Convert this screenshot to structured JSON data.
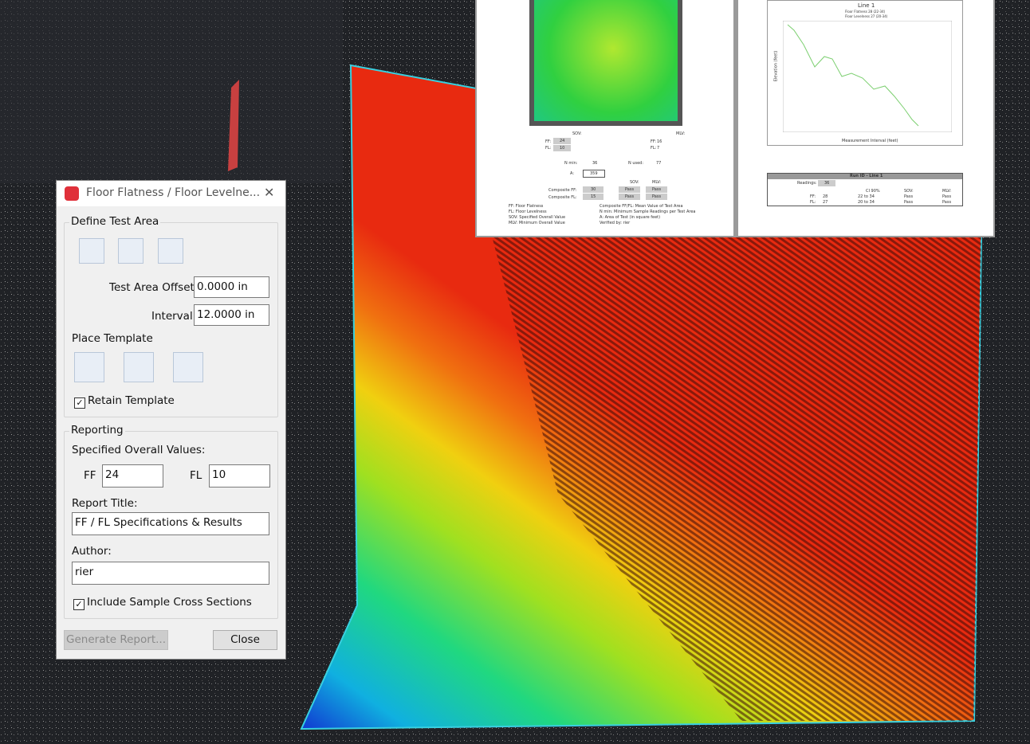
{
  "dialog": {
    "title": "Floor Flatness / Floor Levelne...",
    "close_icon": "✕",
    "define_test_area": "Define Test Area",
    "test_area_offset": {
      "label": "Test Area Offset",
      "value": "0.0000 in"
    },
    "interval": {
      "label": "Interval",
      "value": "12.0000 in"
    },
    "place_template": "Place Template",
    "retain_template": "Retain Template",
    "reporting": "Reporting",
    "specified_overall_values": "Specified Overall Values:",
    "ff": {
      "label": "FF",
      "value": "24"
    },
    "fl": {
      "label": "FL",
      "value": "10"
    },
    "report_title": {
      "label": "Report Title:",
      "value": "FF / FL Specifications & Results"
    },
    "author": {
      "label": "Author:",
      "value": "rier"
    },
    "include_cross_sections": "Include Sample Cross Sections",
    "buttons": {
      "generate": "Generate Report...",
      "close": "Close"
    }
  },
  "report": {
    "left": {
      "sov": "SOV:",
      "mlv": "MLV:",
      "ff_label": "FF:",
      "fl_label": "FL:",
      "sov_ff": "24",
      "sov_fl": "10",
      "mlv_ff": "16",
      "mlv_fl": "7",
      "n_min_label": "N min:",
      "n_min": "36",
      "n_used_label": "N used:",
      "n_used": "77",
      "a_label": "A:",
      "a": "359",
      "composite_ff_label": "Composite FF:",
      "composite_ff": "30",
      "composite_fl_label": "Composite FL:",
      "composite_fl": "15",
      "pass": "Pass",
      "legend": [
        "FF: Floor Flatness",
        "FL: Floor Levelness",
        "SOV: Specified Overall Value",
        "MLV: Minimum Overall Value"
      ],
      "legend2": [
        "Composite FF/FL: Mean Value of Test Area",
        "N min: Minimum Sample Readings per Test Area",
        "A: Area of Test (in square feet)",
        "Verified by: rier"
      ]
    },
    "right": {
      "title": "Line 1",
      "sub1": "Floor Flatness 28 (22-34)",
      "sub2": "Floor Levelness 27 (20-34)",
      "y_label": "Elevation (feet)",
      "x_label": "Measurement Interval (feet)",
      "table_title": "Run ID - Line 1",
      "readings_label": "Readings:",
      "readings": "36",
      "ci": "CI 90%",
      "sov": "SOV:",
      "mlv": "MLV:",
      "ff": "FF:",
      "ff_val": "28",
      "ff_ci": "22  to  34",
      "fl": "FL:",
      "fl_val": "27",
      "fl_ci": "20  to  34",
      "pass": "Pass"
    }
  }
}
